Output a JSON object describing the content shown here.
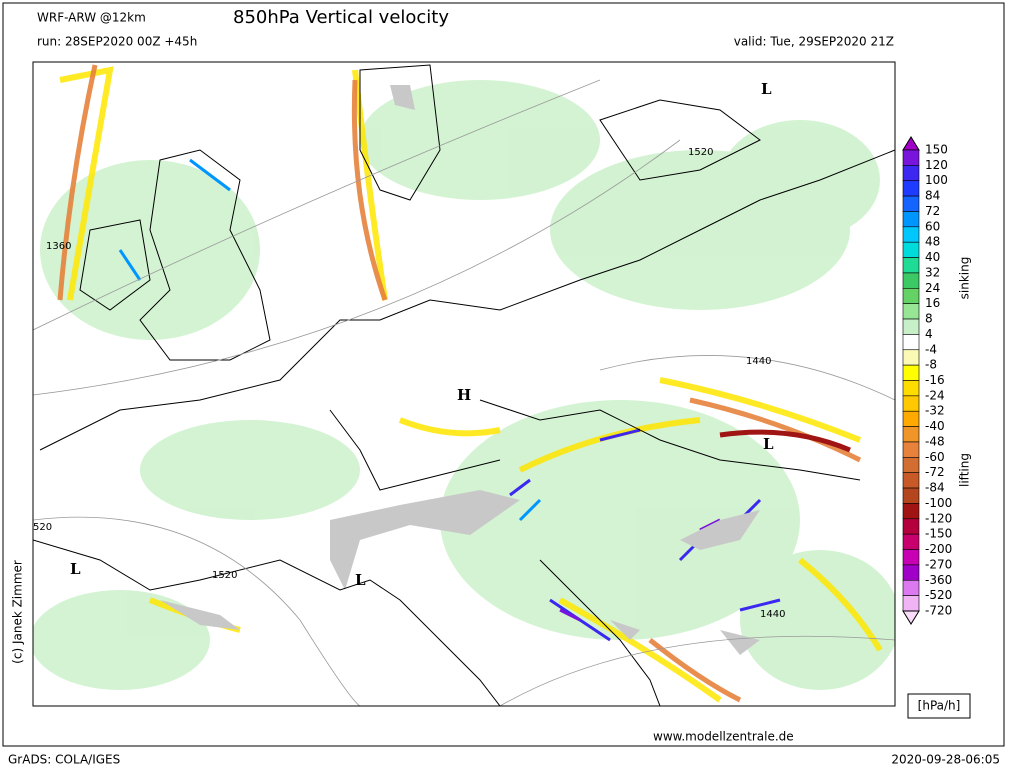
{
  "header": {
    "model": "WRF-ARW @12km",
    "title": "850hPa Vertical velocity",
    "run": "run: 28SEP2020 00Z +45h",
    "valid": "valid: Tue, 29SEP2020 21Z"
  },
  "map": {
    "labels": [
      "L",
      "1520",
      "1360",
      "1440",
      "H",
      "L",
      "520",
      "L",
      "1520",
      "L",
      "1440"
    ]
  },
  "colorbar": {
    "levels": [
      150,
      120,
      100,
      84,
      72,
      60,
      48,
      40,
      32,
      24,
      16,
      8,
      4,
      -4,
      -8,
      -16,
      -24,
      -32,
      -40,
      -48,
      -60,
      -72,
      -84,
      -100,
      -120,
      -150,
      -200,
      -270,
      -360,
      -520,
      -720
    ],
    "colors": [
      "#a000c8",
      "#7814dc",
      "#3c28f0",
      "#1e3cff",
      "#1464ff",
      "#0096ff",
      "#00c8ff",
      "#00dcdc",
      "#1edc96",
      "#3cc864",
      "#64d264",
      "#96e696",
      "#c8f0c8",
      "#ffffff",
      "#fafab4",
      "#ffff00",
      "#ffdc00",
      "#ffc800",
      "#ffaa00",
      "#f09628",
      "#e6823c",
      "#d26e32",
      "#c85a28",
      "#b4461e",
      "#a01414",
      "#b4003c",
      "#c8006e",
      "#c800b4",
      "#a000c8",
      "#dc78f0",
      "#f0b4f5",
      "#fadcfa"
    ],
    "upper_label": "sinking",
    "lower_label": "lifting",
    "unit": "[hPa/h]"
  },
  "footer": {
    "credit": "(c) Janek Zimmer",
    "url": "www.modellzentrale.de",
    "software": "GrADS: COLA/IGES",
    "timestamp": "2020-09-28-06:05"
  }
}
